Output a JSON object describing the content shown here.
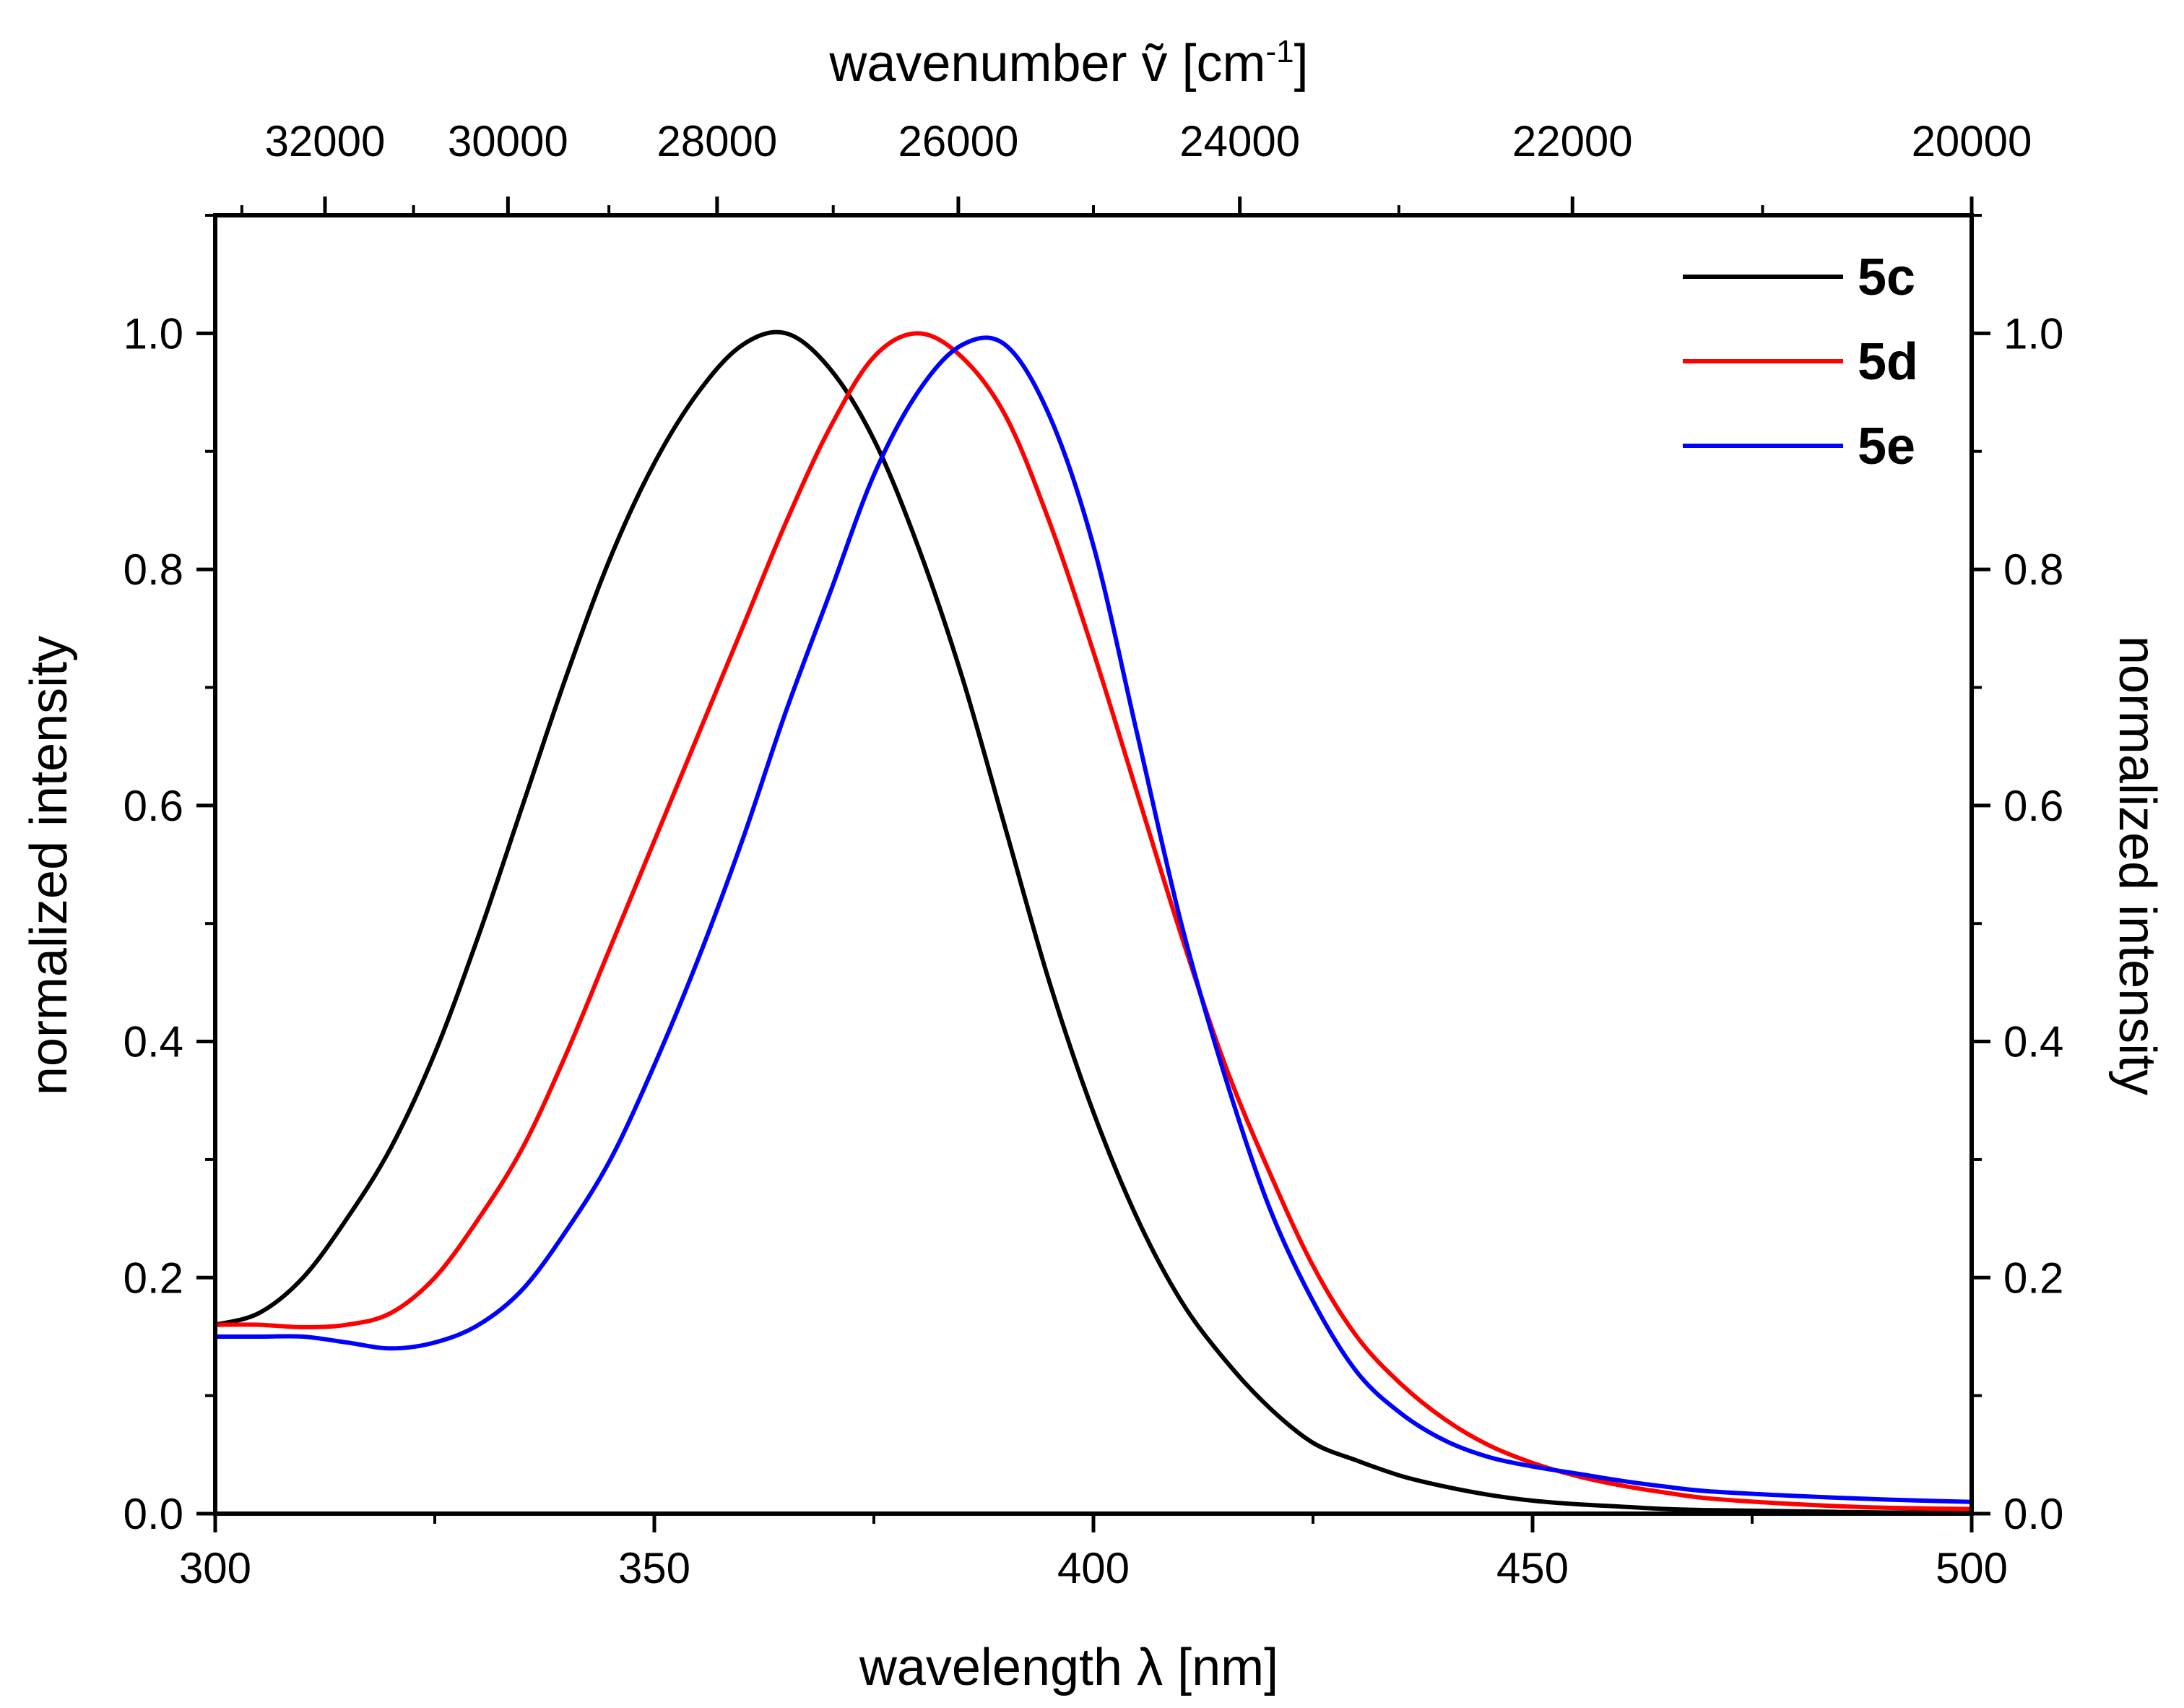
{
  "chart_data": {
    "type": "line",
    "xlabel": "wavelength λ [nm]",
    "ylabel_left": "normalized intensity",
    "ylabel_right": "normalized intensity",
    "top_axis_label_main": "wavenumber ",
    "top_axis_label_symbol": "ṽ",
    "top_axis_label_unit": " [cm",
    "top_axis_label_sup": "-1",
    "top_axis_label_close": "]",
    "xlim": [
      300,
      500
    ],
    "ylim": [
      0.0,
      1.1
    ],
    "x_ticks": [
      300,
      350,
      400,
      450,
      500
    ],
    "x_tick_labels": [
      "300",
      "350",
      "400",
      "450",
      "500"
    ],
    "y_ticks": [
      0.0,
      0.2,
      0.4,
      0.6,
      0.8,
      1.0
    ],
    "y_tick_labels": [
      "0.0",
      "0.2",
      "0.4",
      "0.6",
      "0.8",
      "1.0"
    ],
    "top_ticks_wavenumber": [
      32000,
      30000,
      28000,
      26000,
      24000,
      22000,
      20000
    ],
    "top_tick_labels": [
      "32000",
      "30000",
      "28000",
      "26000",
      "24000",
      "22000",
      "20000"
    ],
    "legend_position": "top-right",
    "series": [
      {
        "name": "5c",
        "color": "#000000",
        "x": [
          300,
          305,
          310,
          315,
          320,
          325,
          330,
          335,
          340,
          345,
          350,
          355,
          360,
          365,
          370,
          375,
          380,
          385,
          390,
          395,
          400,
          405,
          410,
          415,
          420,
          425,
          430,
          435,
          440,
          445,
          450,
          455,
          460,
          465,
          470,
          480,
          490,
          500
        ],
        "y": [
          0.16,
          0.17,
          0.2,
          0.25,
          0.31,
          0.39,
          0.49,
          0.6,
          0.71,
          0.81,
          0.89,
          0.95,
          0.99,
          1.0,
          0.97,
          0.91,
          0.82,
          0.71,
          0.58,
          0.45,
          0.34,
          0.25,
          0.18,
          0.13,
          0.09,
          0.06,
          0.045,
          0.032,
          0.023,
          0.016,
          0.011,
          0.008,
          0.006,
          0.004,
          0.003,
          0.002,
          0.001,
          0.001
        ]
      },
      {
        "name": "5d",
        "color": "#ff0000",
        "x": [
          300,
          305,
          310,
          315,
          320,
          325,
          330,
          335,
          340,
          345,
          350,
          355,
          360,
          365,
          370,
          375,
          380,
          385,
          390,
          395,
          400,
          405,
          410,
          415,
          420,
          425,
          430,
          435,
          440,
          445,
          450,
          455,
          460,
          465,
          470,
          480,
          490,
          500
        ],
        "y": [
          0.16,
          0.16,
          0.158,
          0.16,
          0.17,
          0.2,
          0.25,
          0.31,
          0.39,
          0.48,
          0.57,
          0.66,
          0.75,
          0.84,
          0.92,
          0.98,
          1.0,
          0.98,
          0.93,
          0.84,
          0.73,
          0.61,
          0.49,
          0.38,
          0.29,
          0.21,
          0.15,
          0.11,
          0.08,
          0.058,
          0.043,
          0.032,
          0.024,
          0.018,
          0.013,
          0.008,
          0.005,
          0.004
        ]
      },
      {
        "name": "5e",
        "color": "#0000ff",
        "x": [
          300,
          305,
          310,
          315,
          320,
          325,
          330,
          335,
          340,
          345,
          350,
          355,
          360,
          365,
          370,
          375,
          380,
          385,
          390,
          395,
          400,
          405,
          410,
          415,
          420,
          425,
          430,
          435,
          440,
          445,
          450,
          455,
          460,
          465,
          470,
          480,
          490,
          500
        ],
        "y": [
          0.15,
          0.15,
          0.15,
          0.145,
          0.14,
          0.145,
          0.16,
          0.19,
          0.24,
          0.3,
          0.38,
          0.47,
          0.57,
          0.68,
          0.78,
          0.88,
          0.95,
          0.99,
          0.99,
          0.93,
          0.82,
          0.66,
          0.5,
          0.37,
          0.26,
          0.18,
          0.12,
          0.085,
          0.062,
          0.048,
          0.04,
          0.034,
          0.028,
          0.023,
          0.019,
          0.015,
          0.012,
          0.01
        ]
      }
    ]
  }
}
